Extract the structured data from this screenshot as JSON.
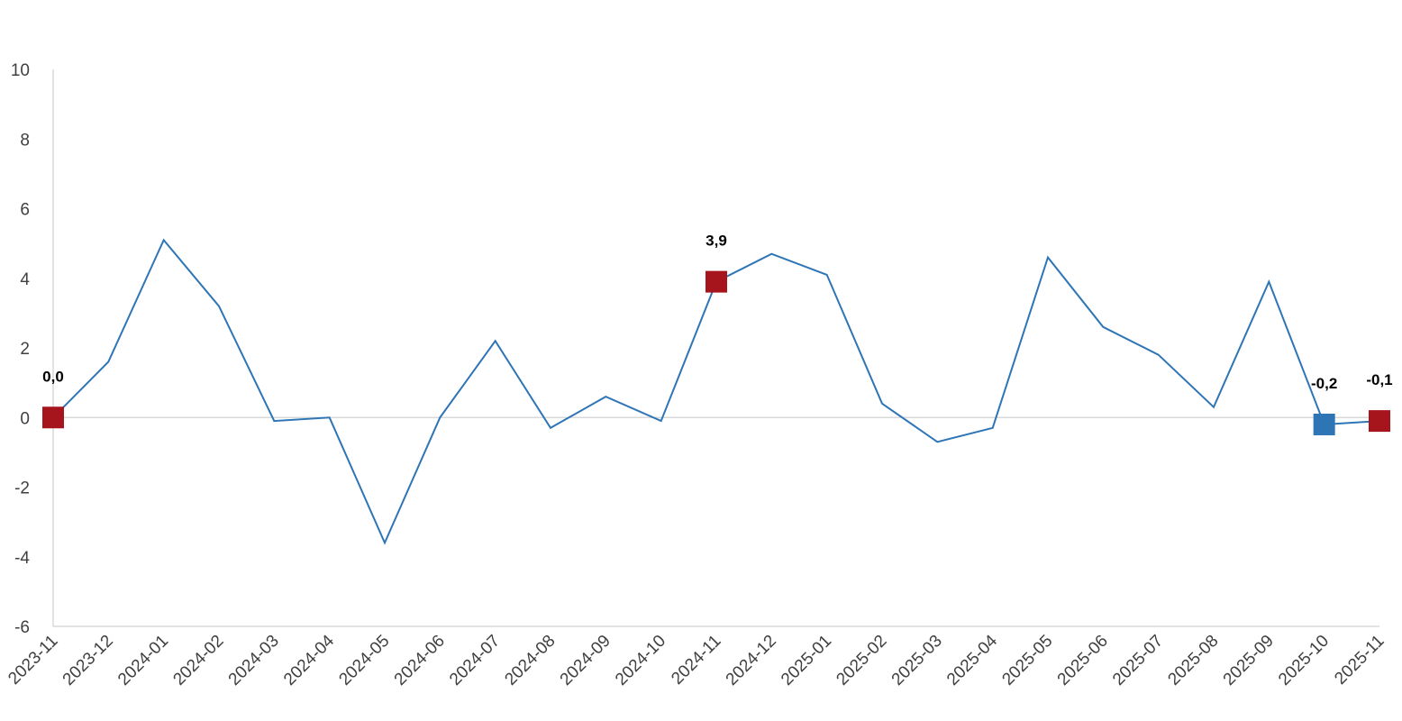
{
  "chart_data": {
    "type": "line",
    "title": "",
    "xlabel": "",
    "ylabel": "",
    "ylim": [
      -6,
      10
    ],
    "yticks": [
      "10",
      "8",
      "6",
      "4",
      "2",
      "0",
      "-2",
      "-4",
      "-6"
    ],
    "grid": false,
    "categories": [
      "2023-11",
      "2023-12",
      "2024-01",
      "2024-02",
      "2024-03",
      "2024-04",
      "2024-05",
      "2024-06",
      "2024-07",
      "2024-08",
      "2024-09",
      "2024-10",
      "2024-11",
      "2024-12",
      "2025-01",
      "2025-02",
      "2025-03",
      "2025-04",
      "2025-05",
      "2025-06",
      "2025-07",
      "2025-08",
      "2025-09",
      "2025-10",
      "2025-11"
    ],
    "series": [
      {
        "values": [
          0.0,
          1.6,
          5.1,
          3.2,
          -0.1,
          0.0,
          -3.6,
          0.0,
          2.2,
          -0.3,
          0.6,
          -0.1,
          3.9,
          4.7,
          4.1,
          0.4,
          -0.7,
          -0.3,
          4.6,
          2.6,
          1.8,
          0.3,
          3.9,
          -0.2,
          -0.1
        ]
      }
    ],
    "line_color": "#2e75b6",
    "highlight_markers": [
      {
        "category": "2023-11",
        "label": "0,0",
        "color": "#a6141c"
      },
      {
        "category": "2024-11",
        "label": "3,9",
        "color": "#a6141c"
      },
      {
        "category": "2025-10",
        "label": "-0,2",
        "color": "#2e75b6"
      },
      {
        "category": "2025-11",
        "label": "-0,1",
        "color": "#a6141c"
      }
    ]
  }
}
